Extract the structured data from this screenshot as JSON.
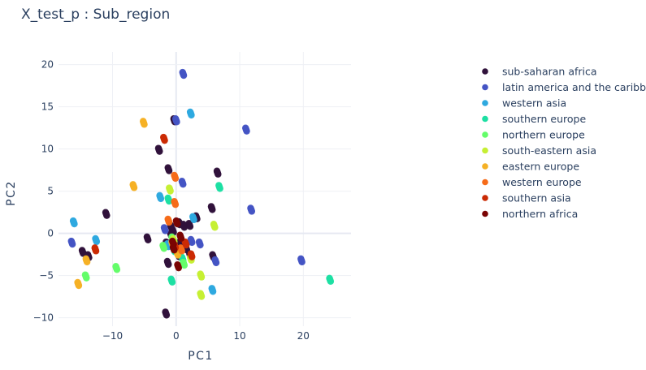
{
  "chart_data": {
    "type": "scatter",
    "title": "X_test_p : Sub_region",
    "xlabel": "PC1",
    "ylabel": "PC2",
    "xlim": [
      -18.5,
      27.5
    ],
    "ylim": [
      -11,
      21.5
    ],
    "xticks": [
      -10,
      0,
      10,
      20
    ],
    "yticks": [
      -10,
      -5,
      0,
      5,
      10,
      15,
      20
    ],
    "xtick_labels": [
      "−10",
      "0",
      "10",
      "20"
    ],
    "ytick_labels": [
      "−10",
      "−5",
      "0",
      "5",
      "10",
      "15",
      "20"
    ],
    "grid": true,
    "legend_position": "right",
    "series": [
      {
        "name": "sub-saharan africa",
        "color": "#30123b",
        "points": [
          [
            -0.3,
            13.4
          ],
          [
            -2.7,
            9.9
          ],
          [
            -1.2,
            7.6
          ],
          [
            6.5,
            7.2
          ],
          [
            -11,
            2.3
          ],
          [
            -14.7,
            -2.2
          ],
          [
            -13.8,
            -2.7
          ],
          [
            -4.5,
            -0.6
          ],
          [
            -0.8,
            0.8
          ],
          [
            -0.5,
            0.3
          ],
          [
            0.5,
            1.2
          ],
          [
            1.2,
            0.9
          ],
          [
            2.1,
            1
          ],
          [
            3.2,
            1.9
          ],
          [
            5.6,
            3
          ],
          [
            -0.8,
            -0.2
          ],
          [
            0,
            -1.3
          ],
          [
            0.8,
            -1
          ],
          [
            1.6,
            -1.8
          ],
          [
            2.2,
            -2.6
          ],
          [
            5.8,
            -2.7
          ],
          [
            -1.3,
            -3.5
          ],
          [
            0.4,
            -2.6
          ],
          [
            -1.6,
            -9.5
          ],
          [
            -1.5,
            -1.2
          ],
          [
            -0.2,
            -1.9
          ]
        ]
      },
      {
        "name": "latin america and the caribbean",
        "color": "#4454c4",
        "points": [
          [
            1.1,
            18.9
          ],
          [
            0,
            13.4
          ],
          [
            11,
            12.3
          ],
          [
            1,
            6
          ],
          [
            11.8,
            2.8
          ],
          [
            19.7,
            -3.2
          ],
          [
            -16.4,
            -1.1
          ],
          [
            -1.8,
            0.5
          ],
          [
            3.7,
            -1.2
          ],
          [
            6.2,
            -3.3
          ],
          [
            -0.6,
            -1.1
          ],
          [
            2.4,
            -0.9
          ]
        ]
      },
      {
        "name": "western asia",
        "color": "#2ea9df",
        "points": [
          [
            2.3,
            14.2
          ],
          [
            -2.5,
            4.3
          ],
          [
            -16.1,
            1.3
          ],
          [
            -12.6,
            -0.8
          ],
          [
            2.7,
            1.8
          ],
          [
            5.7,
            -6.7
          ],
          [
            -1.3,
            -1.4
          ]
        ]
      },
      {
        "name": "southern europe",
        "color": "#1ddfa3",
        "points": [
          [
            6.8,
            5.5
          ],
          [
            24.2,
            -5.5
          ],
          [
            -1.2,
            4
          ],
          [
            -0.7,
            -5.6
          ],
          [
            1,
            -3
          ],
          [
            -0.3,
            -2
          ]
        ]
      },
      {
        "name": "northern europe",
        "color": "#64fd6a",
        "points": [
          [
            -14.2,
            -5.1
          ],
          [
            -9.4,
            -4.1
          ],
          [
            -2,
            -1.6
          ],
          [
            1.2,
            -3.6
          ],
          [
            -0.6,
            -0.6
          ]
        ]
      },
      {
        "name": "south-eastern asia",
        "color": "#c6ef34",
        "points": [
          [
            -1,
            5.2
          ],
          [
            6,
            0.9
          ],
          [
            3.9,
            -5
          ],
          [
            3.9,
            -7.3
          ],
          [
            2.3,
            -3
          ],
          [
            -0.4,
            -0.8
          ]
        ]
      },
      {
        "name": "eastern europe",
        "color": "#f5b125",
        "points": [
          [
            -5.1,
            13.1
          ],
          [
            -6.7,
            5.6
          ],
          [
            -14.1,
            -3.2
          ],
          [
            -15.4,
            -6
          ],
          [
            -0.6,
            -1.2
          ],
          [
            0.2,
            -2.4
          ]
        ]
      },
      {
        "name": "western europe",
        "color": "#f66b19",
        "points": [
          [
            -0.2,
            6.7
          ],
          [
            -1.2,
            1.5
          ],
          [
            -0.2,
            3.6
          ],
          [
            0.8,
            -1.9
          ]
        ]
      },
      {
        "name": "southern asia",
        "color": "#ca2a04",
        "points": [
          [
            -1.9,
            11.2
          ],
          [
            -12.7,
            -1.9
          ],
          [
            1.5,
            -1.2
          ],
          [
            2.4,
            -2.6
          ],
          [
            -0.2,
            -1.5
          ]
        ]
      },
      {
        "name": "northern africa",
        "color": "#7a0403",
        "points": [
          [
            0.1,
            1.3
          ],
          [
            -0.5,
            -1.1
          ],
          [
            0.3,
            -3.9
          ],
          [
            -0.4,
            -1.8
          ],
          [
            0.7,
            -0.4
          ]
        ]
      }
    ]
  }
}
